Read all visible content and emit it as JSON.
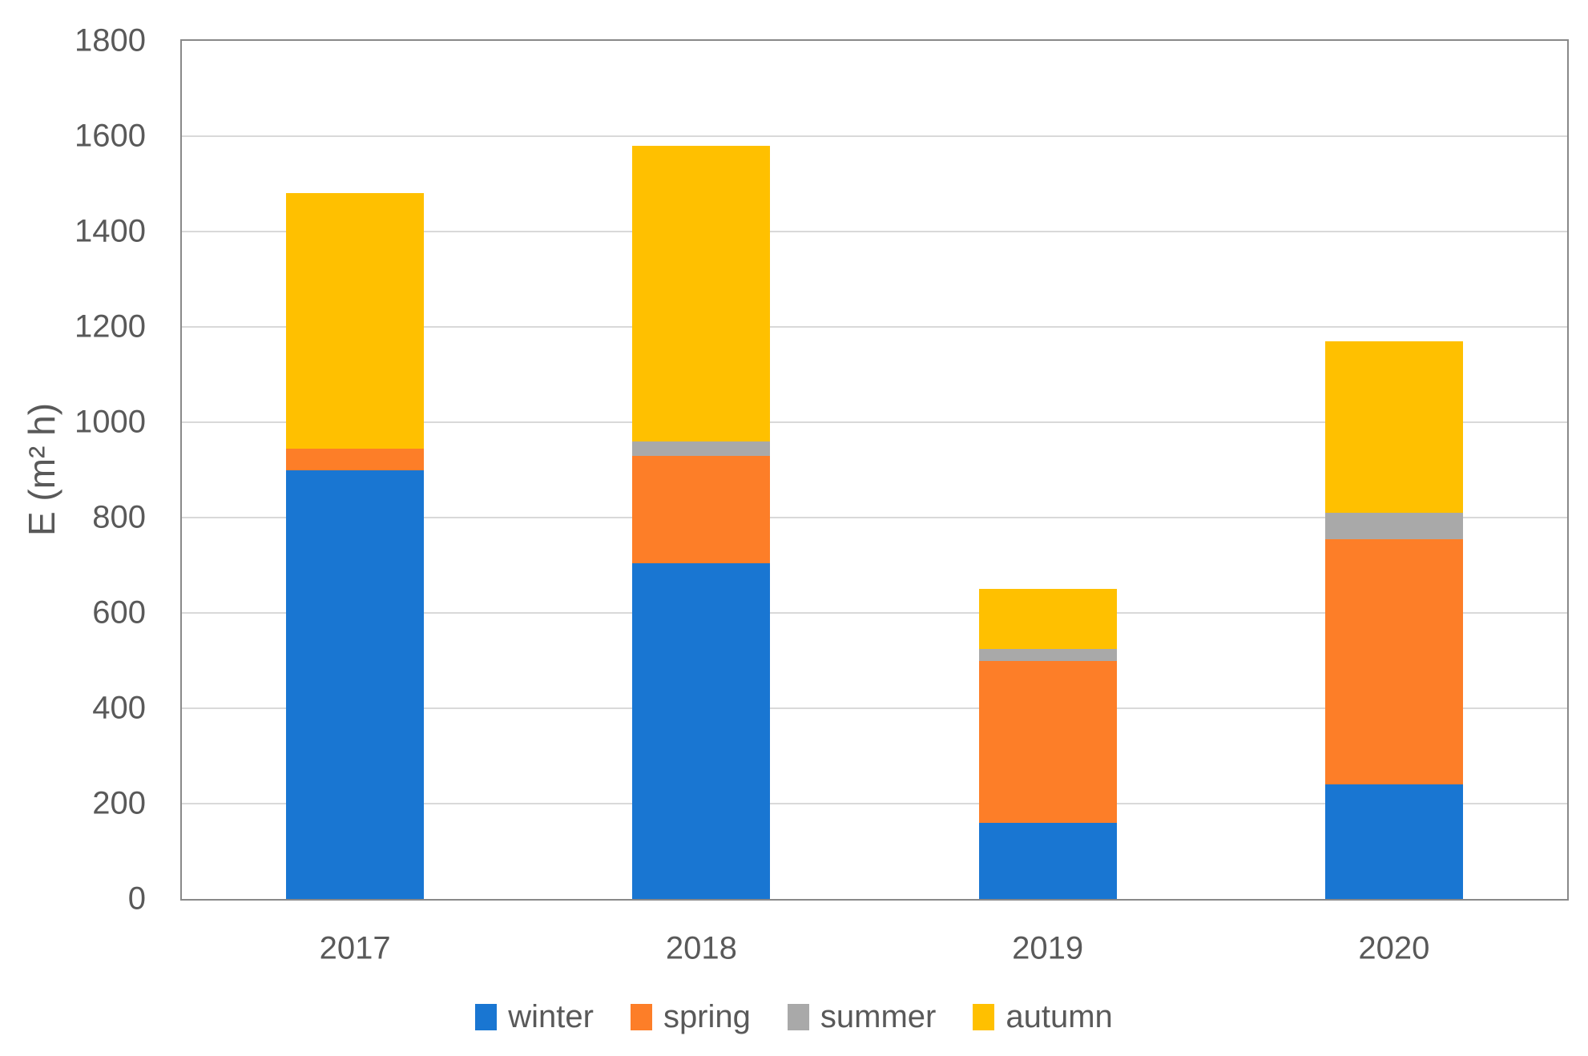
{
  "chart_data": {
    "type": "bar",
    "stacked": true,
    "title": "",
    "xlabel": "",
    "ylabel": "E (m² h)",
    "categories": [
      "2017",
      "2018",
      "2019",
      "2020"
    ],
    "series": [
      {
        "name": "winter",
        "color": "#1976D2",
        "values": [
          900,
          705,
          160,
          240
        ]
      },
      {
        "name": "spring",
        "color": "#FD7E28",
        "values": [
          45,
          225,
          340,
          515
        ]
      },
      {
        "name": "summer",
        "color": "#A9A9A9",
        "values": [
          0,
          30,
          25,
          55
        ]
      },
      {
        "name": "autumn",
        "color": "#FFC000",
        "values": [
          535,
          620,
          125,
          360
        ]
      }
    ],
    "ylim": [
      0,
      1800
    ],
    "y_ticks": [
      0,
      200,
      400,
      600,
      800,
      1000,
      1200,
      1400,
      1600,
      1800
    ],
    "grid": "horizontal",
    "legend_position": "bottom"
  },
  "colors": {
    "axis_text": "#595959",
    "gridline": "#D9D9D9",
    "frame": "#898989",
    "background": "#FFFFFF"
  }
}
